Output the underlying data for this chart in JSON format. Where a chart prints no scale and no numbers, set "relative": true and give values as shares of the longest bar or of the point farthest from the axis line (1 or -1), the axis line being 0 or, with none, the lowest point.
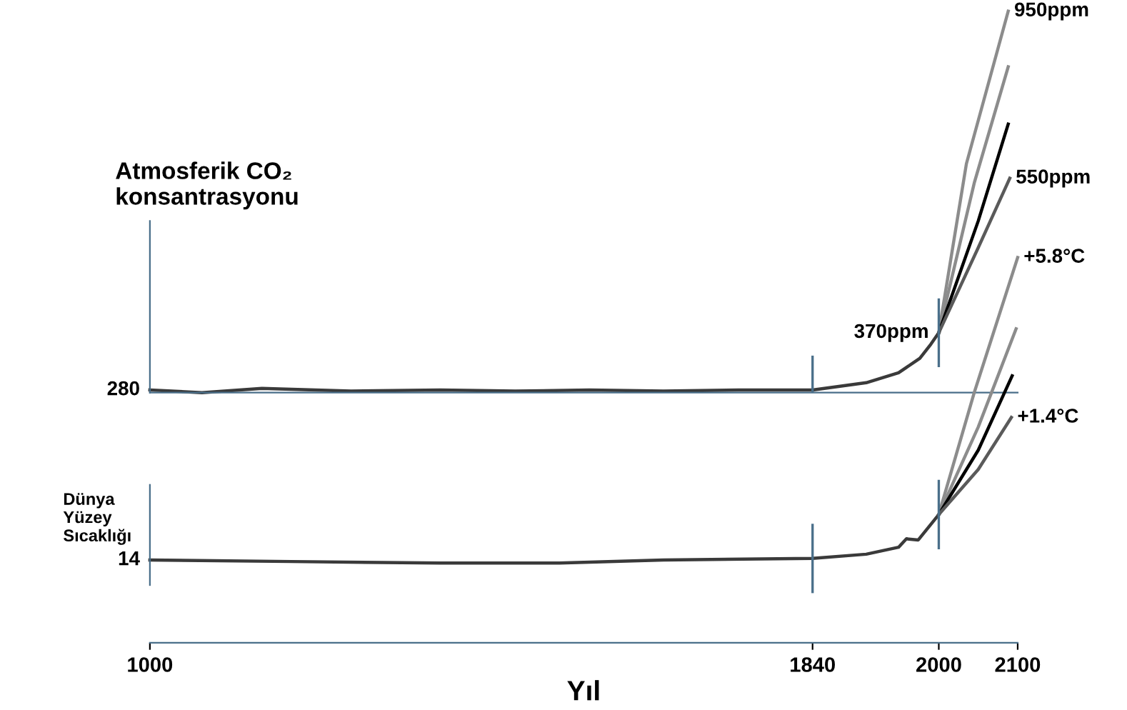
{
  "chart_data": [
    {
      "type": "line",
      "relative": true,
      "ylabel": "Atmosferik CO₂\nkonsantrasyonu",
      "xlim": [
        1000,
        2100
      ],
      "tick_labels": false,
      "series": [
        {
          "color": "#3a3a3a",
          "x": [
            1000,
            1066,
            1142,
            1255,
            1368,
            1463,
            1557,
            1651,
            1746,
            1840,
            1908,
            1949,
            1976,
            1990,
            2000
          ],
          "values": [
            0.007,
            0,
            0.011,
            0.004,
            0.007,
            0.004,
            0.007,
            0.004,
            0.007,
            0.007,
            0.026,
            0.052,
            0.09,
            0.127,
            0.157
          ]
        },
        {
          "color": "#8c8c8c",
          "x": [
            2000,
            2035,
            2088
          ],
          "values": [
            0.157,
            0.6,
            1
          ]
        },
        {
          "color": "#8c8c8c",
          "x": [
            2000,
            2045,
            2088
          ],
          "values": [
            0.157,
            0.55,
            0.854
          ]
        },
        {
          "color": "#000000",
          "x": [
            2000,
            2050,
            2088
          ],
          "values": [
            0.157,
            0.45,
            0.704
          ]
        },
        {
          "color": "#5a5a5a",
          "x": [
            2000,
            2050,
            2090
          ],
          "values": [
            0.157,
            0.38,
            0.562
          ]
        }
      ],
      "ref_lines": [
        {
          "axis": "x",
          "value": 1840
        },
        {
          "axis": "x",
          "value": 2000
        }
      ],
      "annotations": [
        {
          "text": "280",
          "x": 1000,
          "y": 0.007
        },
        {
          "text": "370ppm",
          "x": 2000,
          "y": 0.157
        },
        {
          "text": "550ppm",
          "x": 2090,
          "y": 0.562
        },
        {
          "text": "950ppm",
          "x": 2088,
          "y": 1
        }
      ]
    },
    {
      "type": "line",
      "relative": true,
      "ylabel": "Dünya\nYüzey\nSıcaklığı",
      "xlabel": "Yıl",
      "xlim": [
        1000,
        2100
      ],
      "xticks": [
        1000,
        1840,
        2000,
        2100
      ],
      "tick_labels": "x",
      "series": [
        {
          "color": "#3a3a3a",
          "x": [
            1000,
            1179,
            1368,
            1519,
            1651,
            1840,
            1908,
            1949,
            1959,
            1974,
            2000
          ],
          "values": [
            0.215,
            0.211,
            0.207,
            0.207,
            0.215,
            0.219,
            0.23,
            0.248,
            0.27,
            0.267,
            0.333
          ]
        },
        {
          "color": "#8c8c8c",
          "x": [
            2000,
            2045,
            2100
          ],
          "values": [
            0.333,
            0.65,
            1
          ]
        },
        {
          "color": "#8c8c8c",
          "x": [
            2000,
            2050,
            2098
          ],
          "values": [
            0.333,
            0.56,
            0.815
          ]
        },
        {
          "color": "#000000",
          "x": [
            2000,
            2050,
            2093
          ],
          "values": [
            0.333,
            0.5,
            0.693
          ]
        },
        {
          "color": "#5a5a5a",
          "x": [
            2000,
            2050,
            2092
          ],
          "values": [
            0.333,
            0.45,
            0.585
          ]
        }
      ],
      "ref_lines": [
        {
          "axis": "x",
          "value": 1840
        },
        {
          "axis": "x",
          "value": 2000
        }
      ],
      "annotations": [
        {
          "text": "14",
          "x": 1000,
          "y": 0.215
        },
        {
          "text": "+5.8°C",
          "x": 2100,
          "y": 1
        },
        {
          "text": "+1.4°C",
          "x": 2092,
          "y": 0.585
        }
      ]
    }
  ]
}
